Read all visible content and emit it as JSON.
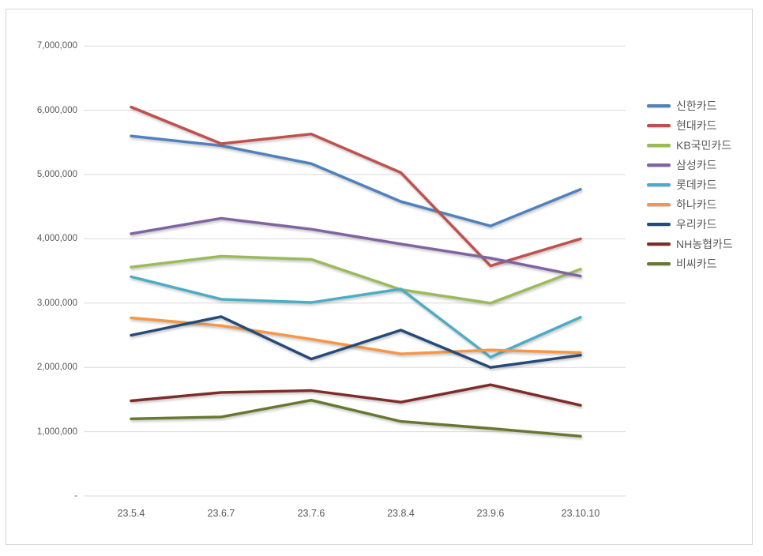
{
  "chart_data": {
    "type": "line",
    "title": "",
    "xlabel": "",
    "ylabel": "",
    "grid": true,
    "legend_position": "right",
    "categories": [
      "23.5.4",
      "23.6.7",
      "23.7.6",
      "23.8.4",
      "23.9.6",
      "23.10.10"
    ],
    "series": [
      {
        "name": "신한카드",
        "color": "#4F81BD",
        "values": [
          5600000,
          5450000,
          5170000,
          4580000,
          4200000,
          4770000
        ]
      },
      {
        "name": "현대카드",
        "color": "#C0504D",
        "values": [
          6050000,
          5480000,
          5630000,
          5030000,
          3580000,
          4000000
        ]
      },
      {
        "name": "KB국민카드",
        "color": "#9BBB59",
        "values": [
          3560000,
          3730000,
          3680000,
          3210000,
          3000000,
          3530000
        ]
      },
      {
        "name": "삼성카드",
        "color": "#8064A2",
        "values": [
          4080000,
          4320000,
          4150000,
          3920000,
          3700000,
          3420000
        ]
      },
      {
        "name": "롯데카드",
        "color": "#4BACC6",
        "values": [
          3410000,
          3060000,
          3010000,
          3220000,
          2160000,
          2780000
        ]
      },
      {
        "name": "하나카드",
        "color": "#F79646",
        "values": [
          2770000,
          2650000,
          2440000,
          2210000,
          2270000,
          2230000
        ]
      },
      {
        "name": "우리카드",
        "color": "#254A7A",
        "values": [
          2500000,
          2790000,
          2130000,
          2580000,
          2000000,
          2190000
        ]
      },
      {
        "name": "NH농협카드",
        "color": "#7F2C29",
        "values": [
          1480000,
          1610000,
          1640000,
          1460000,
          1730000,
          1410000
        ]
      },
      {
        "name": "비씨카드",
        "color": "#66782F",
        "values": [
          1200000,
          1230000,
          1490000,
          1160000,
          1050000,
          930000
        ]
      }
    ],
    "y_axis": {
      "min": 0,
      "max": 7000000,
      "tick_interval": 1000000,
      "tick_labels_top_to_bottom": [
        "7,000,000",
        "6,000,000",
        "5,000,000",
        "4,000,000",
        "3,000,000",
        "2,000,000",
        "1,000,000",
        "-"
      ]
    },
    "colors": {
      "gridline": "#d9d9d9",
      "axis_text": "#595959",
      "background": "#ffffff",
      "card_border": "#d7d7d7"
    }
  }
}
